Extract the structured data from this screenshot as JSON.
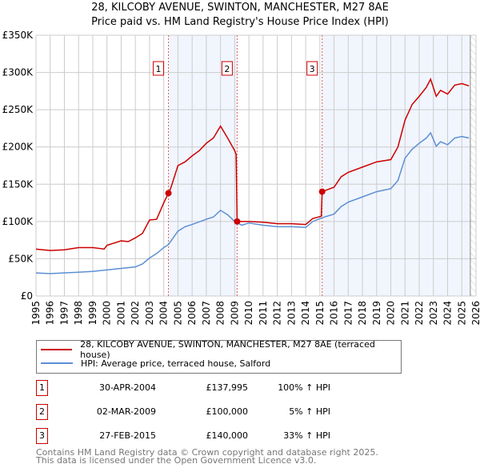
{
  "chart_data": {
    "type": "line",
    "title": "28, KILCOBY AVENUE, SWINTON, MANCHESTER, M27 8AE",
    "subtitle": "Price paid vs. HM Land Registry's House Price Index (HPI)",
    "xlim": [
      1995,
      2026
    ],
    "ylim": [
      0,
      350000
    ],
    "y_ticks": [
      {
        "v": 0,
        "label": "£0"
      },
      {
        "v": 50000,
        "label": "£50K"
      },
      {
        "v": 100000,
        "label": "£100K"
      },
      {
        "v": 150000,
        "label": "£150K"
      },
      {
        "v": 200000,
        "label": "£200K"
      },
      {
        "v": 250000,
        "label": "£250K"
      },
      {
        "v": 300000,
        "label": "£300K"
      },
      {
        "v": 350000,
        "label": "£350K"
      }
    ],
    "x_ticks": [
      "1995",
      "1996",
      "1997",
      "1998",
      "1999",
      "2000",
      "2001",
      "2002",
      "2003",
      "2004",
      "2005",
      "2006",
      "2007",
      "2008",
      "2009",
      "2010",
      "2011",
      "2012",
      "2013",
      "2014",
      "2015",
      "2016",
      "2017",
      "2018",
      "2019",
      "2020",
      "2021",
      "2022",
      "2023",
      "2024",
      "2025",
      "2026"
    ],
    "grid": true,
    "shaded_ranges": [
      [
        2004.33,
        2009.17
      ],
      [
        2015.16,
        2025.6
      ]
    ],
    "future_hatch_from": 2025.6,
    "series": [
      {
        "name": "28, KILCOBY AVENUE, SWINTON, MANCHESTER, M27 8AE (terraced house)",
        "color": "#cc0000",
        "x": [
          1995,
          1996,
          1997,
          1998,
          1999,
          1999.8,
          2000,
          2001,
          2001.5,
          2002,
          2002.5,
          2003,
          2003.5,
          2004,
          2004.33,
          2004.5,
          2005,
          2005.5,
          2006,
          2006.5,
          2007,
          2007.5,
          2008,
          2008.5,
          2009,
          2009.1,
          2009.17,
          2010,
          2011,
          2012,
          2013,
          2014,
          2014.5,
          2015.1,
          2015.16,
          2016,
          2016.5,
          2017,
          2018,
          2019,
          2020,
          2020.5,
          2021,
          2021.5,
          2022,
          2022.5,
          2022.8,
          2023.2,
          2023.5,
          2024,
          2024.5,
          2025,
          2025.5
        ],
        "y": [
          63000,
          61000,
          62000,
          65000,
          65000,
          63000,
          68000,
          74000,
          73000,
          78000,
          84000,
          102000,
          103000,
          125000,
          137995,
          145000,
          175000,
          180000,
          188000,
          195000,
          205000,
          212000,
          228000,
          212000,
          195000,
          190000,
          100000,
          100000,
          99000,
          97000,
          97000,
          96000,
          104000,
          107000,
          140000,
          146000,
          160000,
          166000,
          173000,
          180000,
          183000,
          200000,
          236000,
          257000,
          268000,
          280000,
          291000,
          268000,
          276000,
          271000,
          283000,
          285000,
          282000
        ]
      },
      {
        "name": "HPI: Average price, terraced house, Salford",
        "color": "#5b8fd4",
        "x": [
          1995,
          1996,
          1997,
          1998,
          1999,
          2000,
          2001,
          2002,
          2002.5,
          2003,
          2003.5,
          2004,
          2004.33,
          2005,
          2005.5,
          2006,
          2007,
          2007.5,
          2008,
          2008.5,
          2009,
          2009.5,
          2010,
          2011,
          2012,
          2013,
          2014,
          2014.5,
          2015.16,
          2016,
          2016.5,
          2017,
          2018,
          2019,
          2020,
          2020.5,
          2021,
          2021.5,
          2022,
          2022.5,
          2022.8,
          2023.2,
          2023.5,
          2024,
          2024.5,
          2025,
          2025.5
        ],
        "y": [
          31000,
          30000,
          31000,
          32000,
          33000,
          35000,
          37000,
          39000,
          43000,
          51000,
          57000,
          65000,
          69000,
          87000,
          93000,
          96000,
          103000,
          106000,
          115000,
          109000,
          100000,
          95000,
          98000,
          95000,
          93000,
          93000,
          92000,
          100000,
          105000,
          110000,
          120000,
          126000,
          133000,
          140000,
          144000,
          155000,
          185000,
          197000,
          205000,
          212000,
          219000,
          201000,
          207000,
          203000,
          212000,
          214000,
          212000
        ]
      }
    ],
    "sales": [
      {
        "n": "1",
        "x": 2004.33,
        "y": 137995,
        "date": "30-APR-2004",
        "price": "£137,995",
        "hpi": "100% ↑ HPI"
      },
      {
        "n": "2",
        "x": 2009.17,
        "y": 100000,
        "date": "02-MAR-2009",
        "price": "£100,000",
        "hpi": "5% ↑ HPI"
      },
      {
        "n": "3",
        "x": 2015.16,
        "y": 140000,
        "date": "27-FEB-2015",
        "price": "£140,000",
        "hpi": "33% ↑ HPI"
      }
    ],
    "legend_placement": "bottom"
  },
  "footer": {
    "line1": "Contains HM Land Registry data © Crown copyright and database right 2025.",
    "line2": "This data is licensed under the Open Government Licence v3.0."
  }
}
